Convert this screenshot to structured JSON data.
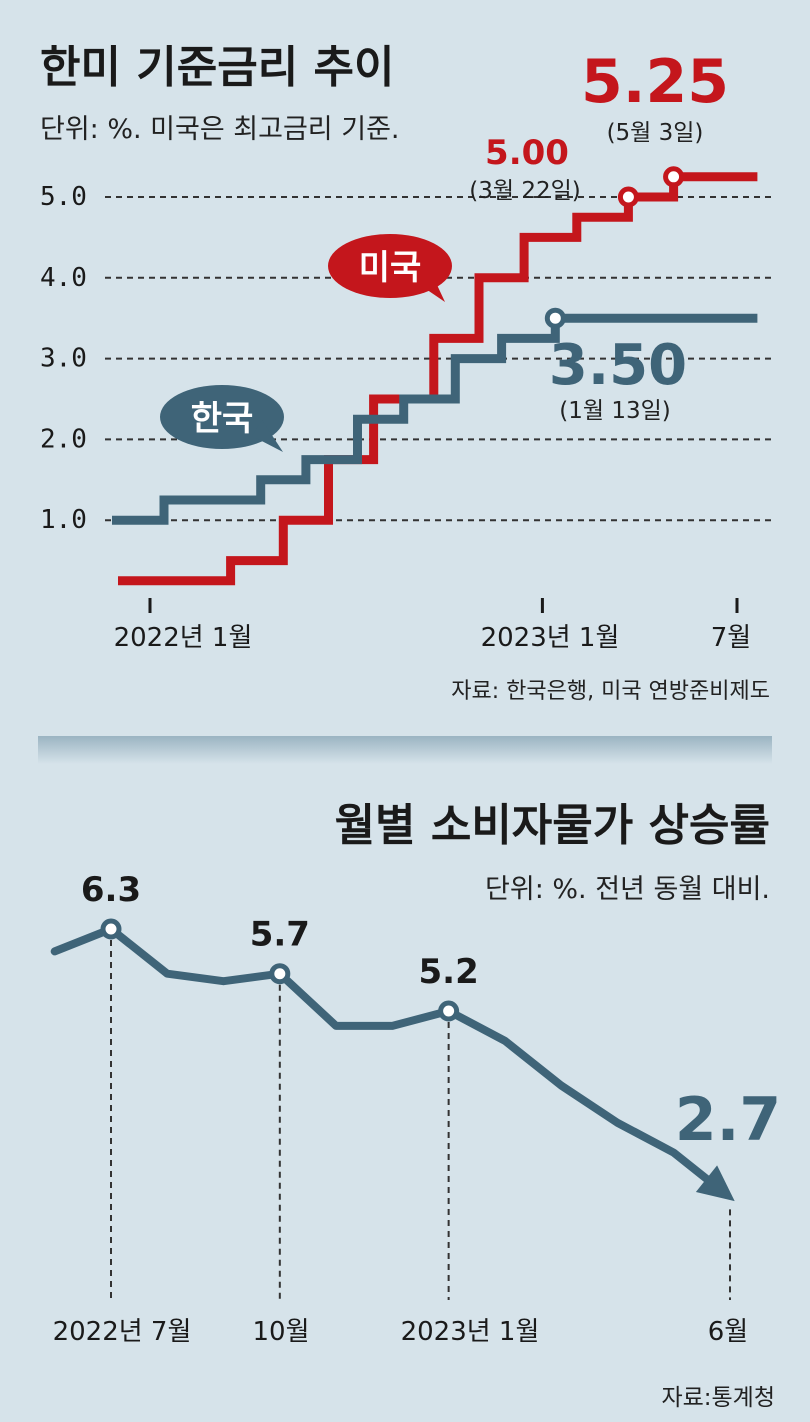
{
  "chart_data": [
    {
      "type": "line",
      "title": "한미 기준금리 추이",
      "subtitle": "단위: %. 미국은 최고금리 기준.",
      "source": "자료: 한국은행, 미국 연방준비제도",
      "ylim": [
        0,
        5.5
      ],
      "yticks": [
        "1.0",
        "2.0",
        "3.0",
        "4.0",
        "5.0"
      ],
      "xticks": [
        "2022년 1월",
        "2023년 1월",
        "7월"
      ],
      "grid": true,
      "series": [
        {
          "name": "미국",
          "color": "#c4161c",
          "points": [
            {
              "x": "2022-01-01",
              "y": 0.25
            },
            {
              "x": "2022-03-17",
              "y": 0.5
            },
            {
              "x": "2022-05-05",
              "y": 1.0
            },
            {
              "x": "2022-06-16",
              "y": 1.75
            },
            {
              "x": "2022-07-28",
              "y": 2.5
            },
            {
              "x": "2022-09-22",
              "y": 3.25
            },
            {
              "x": "2022-11-03",
              "y": 4.0
            },
            {
              "x": "2022-12-15",
              "y": 4.5
            },
            {
              "x": "2023-02-02",
              "y": 4.75
            },
            {
              "x": "2023-03-22",
              "y": 5.0
            },
            {
              "x": "2023-05-03",
              "y": 5.25
            },
            {
              "x": "2023-07-20",
              "y": 5.25
            }
          ]
        },
        {
          "name": "한국",
          "color": "#3f6478",
          "points": [
            {
              "x": "2022-01-01",
              "y": 1.0
            },
            {
              "x": "2022-01-14",
              "y": 1.25
            },
            {
              "x": "2022-04-14",
              "y": 1.5
            },
            {
              "x": "2022-05-26",
              "y": 1.75
            },
            {
              "x": "2022-07-13",
              "y": 2.25
            },
            {
              "x": "2022-08-25",
              "y": 2.5
            },
            {
              "x": "2022-10-12",
              "y": 3.0
            },
            {
              "x": "2022-11-24",
              "y": 3.25
            },
            {
              "x": "2023-01-13",
              "y": 3.5
            },
            {
              "x": "2023-07-20",
              "y": 3.5
            }
          ]
        }
      ],
      "annotations": [
        {
          "series": "미국",
          "x": "2023-05-03",
          "value": "5.25",
          "date": "(5월 3일)"
        },
        {
          "series": "미국",
          "x": "2023-03-22",
          "value": "5.00",
          "date": "(3월 22일)"
        },
        {
          "series": "한국",
          "x": "2023-01-13",
          "value": "3.50",
          "date": "(1월 13일)"
        }
      ]
    },
    {
      "type": "line",
      "title": "월별 소비자물가 상승률",
      "subtitle": "단위: %. 전년 동월 대비.",
      "source": "자료:통계청",
      "ylim": [
        2.0,
        7.0
      ],
      "xticks": [
        "2022년 7월",
        "10월",
        "2023년 1월",
        "6월"
      ],
      "series": [
        {
          "name": "",
          "color": "#3f6478",
          "x": [
            "2022-06",
            "2022-07",
            "2022-08",
            "2022-09",
            "2022-10",
            "2022-11",
            "2022-12",
            "2023-01",
            "2023-02",
            "2023-03",
            "2023-04",
            "2023-05",
            "2023-06"
          ],
          "values": [
            6.0,
            6.3,
            5.7,
            5.6,
            5.7,
            5.0,
            5.0,
            5.2,
            4.8,
            4.2,
            3.7,
            3.3,
            2.7
          ]
        }
      ],
      "labels": [
        {
          "x": "2022-07",
          "value": "6.3"
        },
        {
          "x": "2022-10",
          "value": "5.7"
        },
        {
          "x": "2023-01",
          "value": "5.2"
        },
        {
          "x": "2023-06",
          "value": "2.7"
        }
      ]
    }
  ],
  "legend": {
    "us": "미국",
    "kr": "한국"
  }
}
